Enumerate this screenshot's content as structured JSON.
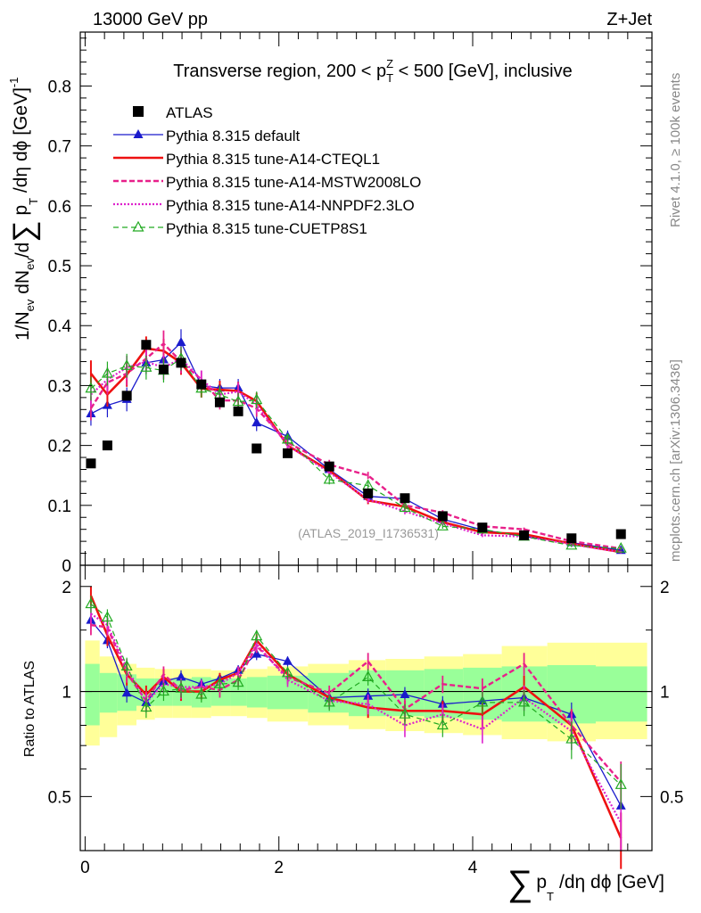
{
  "header": {
    "left_label": "13000 GeV pp",
    "right_label": "Z+Jet",
    "side_label_top": "Rivet 4.1.0, ≥ 100k events",
    "side_label_bottom": "mcplots.cern.ch [arXiv:1306.3436]",
    "watermark": "(ATLAS_2019_I1736531)"
  },
  "chart_data": [
    {
      "type": "line",
      "panel": "main",
      "title": "Transverse region, 200 < p_T^Z < 500 [GeV], inclusive",
      "title_parts": {
        "pre": "Transverse region, 200 < p",
        "sub": "T",
        "sup": "Z",
        "post": " < 500 [GeV], inclusive"
      },
      "ylabel": "1/N_ev dN_ev/d∑ p_T /dη dϕ  [GeV]^-1",
      "ylabel_parts": {
        "a": "1/N",
        "ev1": "ev",
        "b": " dN",
        "ev2": "ev",
        "c": "/d",
        "sum": "∑",
        "d": " p",
        "t": "T",
        "e": " /dη dϕ  [GeV]",
        "exp": "-1"
      },
      "xlabel": "∑ p_T /dη dϕ [GeV]",
      "xlabel_parts": {
        "sum": "∑",
        "p": "p",
        "t": "T",
        "rest": "/dη dϕ [GeV]"
      },
      "xlim": [
        -0.05,
        5.85
      ],
      "ylim": [
        0,
        0.89
      ],
      "yticks": [
        0,
        0.1,
        0.2,
        0.3,
        0.4,
        0.5,
        0.6,
        0.7,
        0.8
      ],
      "ytick_labels": [
        "0",
        "0.1",
        "0.2",
        "0.3",
        "0.4",
        "0.5",
        "0.6",
        "0.7",
        "0.8"
      ],
      "x": [
        0.06,
        0.23,
        0.43,
        0.63,
        0.81,
        0.99,
        1.2,
        1.39,
        1.58,
        1.77,
        2.09,
        2.52,
        2.92,
        3.3,
        3.69,
        4.1,
        4.53,
        5.02,
        5.53
      ],
      "atlas": {
        "name": "ATLAS",
        "values": [
          0.17,
          0.2,
          0.283,
          0.368,
          0.327,
          0.338,
          0.302,
          0.272,
          0.257,
          0.195,
          0.187,
          0.165,
          0.12,
          0.112,
          0.082,
          0.063,
          0.05,
          0.045,
          0.052
        ]
      },
      "series": [
        {
          "name": "Pythia 8.315 default",
          "color": "#1a1acc",
          "values": [
            0.253,
            0.267,
            0.277,
            0.338,
            0.343,
            0.372,
            0.3,
            0.296,
            0.296,
            0.238,
            0.215,
            0.16,
            0.115,
            0.111,
            0.077,
            0.059,
            0.048,
            0.038,
            0.025
          ],
          "errors": [
            0.02,
            0.02,
            0.02,
            0.02,
            0.02,
            0.022,
            0.015,
            0.015,
            0.015,
            0.014,
            0.01,
            0.008,
            0.006,
            0.005,
            0.004,
            0.003,
            0.003,
            0.003,
            0.002
          ]
        },
        {
          "name": "Pythia 8.315 tune-A14-CTEQL1",
          "color": "#ee1111",
          "values": [
            0.32,
            0.285,
            0.318,
            0.362,
            0.358,
            0.338,
            0.295,
            0.293,
            0.291,
            0.274,
            0.2,
            0.158,
            0.108,
            0.098,
            0.072,
            0.055,
            0.052,
            0.036,
            0.022
          ],
          "errors": [
            0.022,
            0.02,
            0.02,
            0.02,
            0.02,
            0.02,
            0.015,
            0.015,
            0.015,
            0.014,
            0.01,
            0.008,
            0.006,
            0.005,
            0.004,
            0.003,
            0.003,
            0.003,
            0.002
          ]
        },
        {
          "name": "Pythia 8.315 tune-A14-MSTW2008LO",
          "color": "#e8208a",
          "values": [
            0.262,
            0.305,
            0.32,
            0.345,
            0.37,
            0.34,
            0.31,
            0.275,
            0.275,
            0.262,
            0.205,
            0.168,
            0.15,
            0.1,
            0.088,
            0.065,
            0.06,
            0.04,
            0.028
          ],
          "errors": [
            0.02,
            0.02,
            0.02,
            0.02,
            0.022,
            0.02,
            0.015,
            0.015,
            0.015,
            0.014,
            0.01,
            0.008,
            0.006,
            0.005,
            0.004,
            0.003,
            0.003,
            0.003,
            0.002
          ]
        },
        {
          "name": "Pythia 8.315 tune-A14-NNPDF2.3LO",
          "color": "#dd22cc",
          "values": [
            0.285,
            0.31,
            0.33,
            0.34,
            0.33,
            0.345,
            0.31,
            0.285,
            0.29,
            0.268,
            0.2,
            0.155,
            0.11,
            0.09,
            0.07,
            0.05,
            0.048,
            0.035,
            0.022
          ],
          "errors": [
            0.02,
            0.02,
            0.02,
            0.02,
            0.02,
            0.02,
            0.015,
            0.015,
            0.015,
            0.014,
            0.01,
            0.008,
            0.006,
            0.005,
            0.004,
            0.003,
            0.003,
            0.003,
            0.002
          ]
        },
        {
          "name": "Pythia 8.315 tune-CUETP8S1",
          "color": "#22aa22",
          "values": [
            0.295,
            0.32,
            0.333,
            0.33,
            0.325,
            0.345,
            0.295,
            0.285,
            0.273,
            0.276,
            0.21,
            0.143,
            0.133,
            0.096,
            0.065,
            0.06,
            0.048,
            0.033,
            0.028
          ],
          "errors": [
            0.02,
            0.02,
            0.02,
            0.02,
            0.02,
            0.02,
            0.015,
            0.015,
            0.015,
            0.014,
            0.01,
            0.008,
            0.006,
            0.005,
            0.004,
            0.003,
            0.003,
            0.003,
            0.002
          ]
        }
      ]
    },
    {
      "type": "line",
      "panel": "ratio",
      "ylabel": "Ratio to ATLAS",
      "xlim": [
        -0.05,
        5.85
      ],
      "ylim": [
        0.35,
        2.3
      ],
      "yticks": [
        0.5,
        1,
        2
      ],
      "ytick_labels": [
        "0.5",
        "1",
        "2"
      ],
      "xticks": [
        0,
        2,
        4
      ],
      "xtick_labels": [
        "0",
        "2",
        "4"
      ],
      "band_edges": [
        0.0,
        0.15,
        0.33,
        0.53,
        0.72,
        0.9,
        1.1,
        1.3,
        1.5,
        1.67,
        1.88,
        2.3,
        2.72,
        3.1,
        3.5,
        3.9,
        4.3,
        4.77,
        5.27,
        5.8
      ],
      "band_inner": [
        [
          0.8,
          1.2
        ],
        [
          0.87,
          1.13
        ],
        [
          0.88,
          1.12
        ],
        [
          0.91,
          1.09
        ],
        [
          0.91,
          1.09
        ],
        [
          0.91,
          1.09
        ],
        [
          0.9,
          1.1
        ],
        [
          0.91,
          1.09
        ],
        [
          0.91,
          1.09
        ],
        [
          0.9,
          1.1
        ],
        [
          0.89,
          1.11
        ],
        [
          0.87,
          1.13
        ],
        [
          0.85,
          1.15
        ],
        [
          0.85,
          1.15
        ],
        [
          0.84,
          1.16
        ],
        [
          0.83,
          1.17
        ],
        [
          0.82,
          1.18
        ],
        [
          0.81,
          1.19
        ],
        [
          0.82,
          1.18
        ]
      ],
      "band_outer": [
        [
          0.7,
          1.4
        ],
        [
          0.74,
          1.26
        ],
        [
          0.8,
          1.2
        ],
        [
          0.83,
          1.17
        ],
        [
          0.84,
          1.16
        ],
        [
          0.84,
          1.16
        ],
        [
          0.84,
          1.16
        ],
        [
          0.85,
          1.15
        ],
        [
          0.85,
          1.15
        ],
        [
          0.84,
          1.16
        ],
        [
          0.82,
          1.18
        ],
        [
          0.8,
          1.2
        ],
        [
          0.78,
          1.23
        ],
        [
          0.77,
          1.24
        ],
        [
          0.76,
          1.26
        ],
        [
          0.75,
          1.28
        ],
        [
          0.73,
          1.35
        ],
        [
          0.72,
          1.38
        ],
        [
          0.73,
          1.38
        ]
      ],
      "series": [
        {
          "name": "Pythia 8.315 default",
          "values": [
            1.6,
            1.4,
            0.99,
            0.93,
            1.07,
            1.1,
            1.05,
            1.09,
            1.15,
            1.28,
            1.22,
            0.96,
            0.97,
            0.98,
            0.92,
            0.94,
            0.96,
            0.86,
            0.47
          ],
          "errors": [
            0.08,
            0.07,
            0.06,
            0.05,
            0.05,
            0.05,
            0.04,
            0.04,
            0.04,
            0.05,
            0.04,
            0.04,
            0.05,
            0.05,
            0.05,
            0.06,
            0.06,
            0.07,
            0.06
          ]
        },
        {
          "name": "Pythia 8.315 tune-A14-CTEQL1",
          "values": [
            1.88,
            1.45,
            1.12,
            0.98,
            1.1,
            1.0,
            1.0,
            1.08,
            1.13,
            1.4,
            1.12,
            0.96,
            0.9,
            0.88,
            0.88,
            0.86,
            1.03,
            0.8,
            0.38
          ],
          "errors": [
            0.12,
            0.1,
            0.08,
            0.06,
            0.06,
            0.06,
            0.05,
            0.05,
            0.05,
            0.06,
            0.05,
            0.05,
            0.06,
            0.06,
            0.06,
            0.07,
            0.08,
            0.09,
            0.07
          ]
        },
        {
          "name": "Pythia 8.315 tune-A14-MSTW2008LO",
          "values": [
            1.55,
            1.53,
            1.13,
            0.94,
            1.12,
            1.01,
            1.03,
            1.01,
            1.08,
            1.35,
            1.1,
            0.99,
            1.22,
            0.89,
            1.05,
            1.02,
            1.2,
            0.8,
            0.55
          ],
          "errors": [
            0.1,
            0.09,
            0.07,
            0.06,
            0.06,
            0.06,
            0.05,
            0.05,
            0.05,
            0.06,
            0.05,
            0.05,
            0.07,
            0.06,
            0.06,
            0.07,
            0.09,
            0.09,
            0.08
          ]
        },
        {
          "name": "Pythia 8.315 tune-A14-NNPDF2.3LO",
          "values": [
            1.67,
            1.55,
            1.17,
            0.93,
            1.05,
            1.03,
            1.03,
            1.05,
            1.13,
            1.37,
            1.08,
            0.94,
            0.92,
            0.8,
            0.86,
            0.78,
            0.96,
            0.77,
            0.42
          ],
          "errors": [
            0.1,
            0.09,
            0.07,
            0.06,
            0.06,
            0.06,
            0.05,
            0.05,
            0.05,
            0.06,
            0.05,
            0.05,
            0.06,
            0.06,
            0.06,
            0.07,
            0.08,
            0.09,
            0.07
          ]
        },
        {
          "name": "Pythia 8.315 tune-CUETP8S1",
          "values": [
            1.78,
            1.63,
            1.18,
            0.9,
            1.0,
            1.02,
            0.98,
            1.05,
            1.06,
            1.44,
            1.13,
            0.93,
            1.1,
            0.86,
            0.8,
            0.93,
            0.93,
            0.73,
            0.54
          ],
          "errors": [
            0.1,
            0.09,
            0.07,
            0.06,
            0.06,
            0.06,
            0.05,
            0.05,
            0.05,
            0.06,
            0.05,
            0.05,
            0.06,
            0.06,
            0.06,
            0.07,
            0.08,
            0.09,
            0.08
          ]
        }
      ]
    }
  ]
}
